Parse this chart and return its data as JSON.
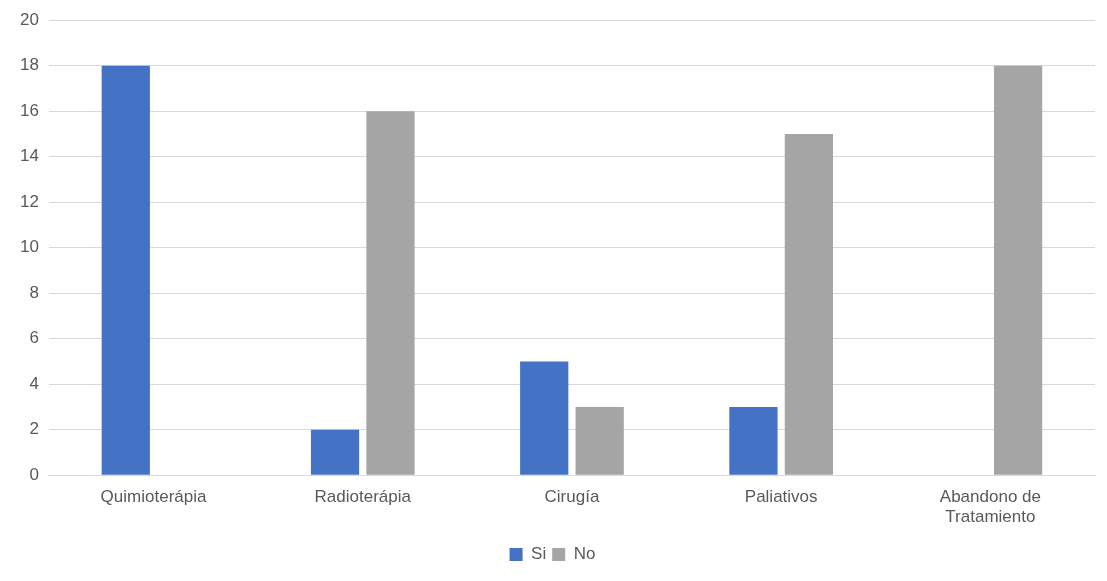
{
  "chart_data": {
    "type": "bar",
    "categories": [
      "Quimioterápia",
      "Radioterápia",
      "Cirugía",
      "Paliativos",
      "Abandono de Tratamiento"
    ],
    "series": [
      {
        "name": "Si",
        "color": "#4472c4",
        "values": [
          18,
          2,
          5,
          3,
          0
        ]
      },
      {
        "name": "No",
        "color": "#a5a5a5",
        "values": [
          0,
          16,
          3,
          15,
          18
        ]
      }
    ],
    "ylim": [
      0,
      20
    ],
    "yticks": [
      0,
      2,
      4,
      6,
      8,
      10,
      12,
      14,
      16,
      18,
      20
    ],
    "grid": "y",
    "legend": "bottom"
  }
}
